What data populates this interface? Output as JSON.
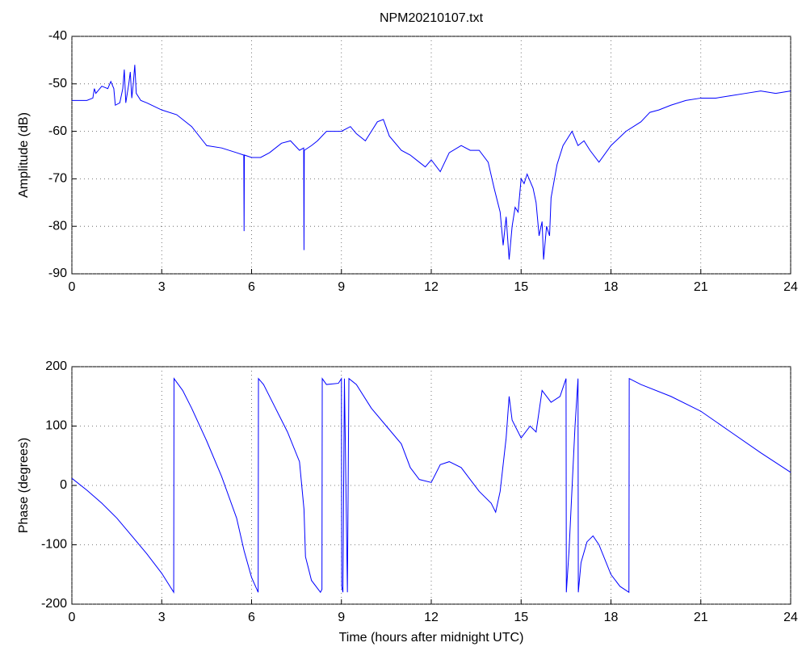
{
  "chart_data": [
    {
      "type": "line",
      "title": "NPM20210107.txt",
      "y_label": "Amplitude (dB)",
      "color": "#0000ff",
      "grid": true,
      "xlim": [
        0,
        24
      ],
      "xticks": [
        0,
        3,
        6,
        9,
        12,
        15,
        18,
        21,
        24
      ],
      "ylim": [
        -90,
        -40
      ],
      "yticks": [
        -90,
        -80,
        -70,
        -60,
        -50,
        -40
      ],
      "x": [
        0,
        0.5,
        0.7,
        0.75,
        0.8,
        1.0,
        1.2,
        1.3,
        1.4,
        1.45,
        1.6,
        1.7,
        1.75,
        1.8,
        1.9,
        1.95,
        2.0,
        2.05,
        2.1,
        2.15,
        2.3,
        2.5,
        3,
        3.5,
        4,
        4.5,
        5,
        5.5,
        5.74,
        5.75,
        5.76,
        6,
        6.3,
        6.6,
        7,
        7.3,
        7.6,
        7.74,
        7.75,
        7.76,
        8,
        8.2,
        8.5,
        9,
        9.3,
        9.5,
        9.8,
        10,
        10.2,
        10.4,
        10.6,
        11,
        11.3,
        11.6,
        11.8,
        12,
        12.3,
        12.6,
        13,
        13.3,
        13.6,
        13.9,
        14.1,
        14.3,
        14.4,
        14.5,
        14.6,
        14.7,
        14.8,
        14.9,
        15.0,
        15.1,
        15.2,
        15.4,
        15.5,
        15.6,
        15.7,
        15.75,
        15.85,
        15.95,
        16.0,
        16.2,
        16.4,
        16.5,
        16.7,
        16.9,
        17.1,
        17.3,
        17.6,
        18,
        18.5,
        19,
        19.3,
        19.6,
        20,
        20.5,
        21,
        21.5,
        22,
        22.5,
        23,
        23.5,
        24
      ],
      "values": [
        -53.5,
        -53.5,
        -53,
        -51,
        -52,
        -50.5,
        -51,
        -49.5,
        -51,
        -54.5,
        -54,
        -51,
        -47,
        -54,
        -50,
        -47.5,
        -53,
        -50,
        -46,
        -52,
        -53.5,
        -54,
        -55.5,
        -56.5,
        -59,
        -63,
        -63.5,
        -64.5,
        -65,
        -81,
        -65,
        -65.5,
        -65.5,
        -64.5,
        -62.5,
        -62,
        -64,
        -63.5,
        -85,
        -64,
        -63,
        -62,
        -60,
        -60,
        -59,
        -60.5,
        -62,
        -60,
        -58,
        -57.5,
        -61,
        -64,
        -65,
        -66.5,
        -67.5,
        -66,
        -68.5,
        -64.5,
        -63,
        -64,
        -64,
        -66.5,
        -72,
        -77,
        -84,
        -78,
        -87,
        -80,
        -76,
        -77,
        -70,
        -71,
        -69,
        -72,
        -75,
        -82,
        -79,
        -87,
        -80,
        -82,
        -74,
        -67,
        -63,
        -62,
        -60,
        -63,
        -62,
        -64,
        -66.5,
        -63,
        -60,
        -58,
        -56,
        -55.5,
        -54.5,
        -53.5,
        -53,
        -53,
        -52.5,
        -52,
        -51.5,
        -52,
        -51.5
      ]
    },
    {
      "type": "line",
      "x_label": "Time (hours after midnight UTC)",
      "y_label": "Phase (degrees)",
      "color": "#0000ff",
      "grid": true,
      "xlim": [
        0,
        24
      ],
      "xticks": [
        0,
        3,
        6,
        9,
        12,
        15,
        18,
        21,
        24
      ],
      "ylim": [
        -200,
        200
      ],
      "yticks": [
        -200,
        -100,
        0,
        100,
        200
      ],
      "x": [
        0,
        0.5,
        1,
        1.5,
        2,
        2.5,
        3,
        3.4,
        3.41,
        3.7,
        4,
        4.5,
        5,
        5.5,
        5.75,
        6.0,
        6.22,
        6.23,
        6.4,
        6.8,
        7.2,
        7.6,
        7.75,
        7.8,
        8,
        8.3,
        8.35,
        8.36,
        8.5,
        8.9,
        9.0,
        9.01,
        9.05,
        9.1,
        9.2,
        9.25,
        9.5,
        10,
        10.5,
        11,
        11.3,
        11.6,
        12,
        12.3,
        12.6,
        13,
        13.3,
        13.6,
        14.0,
        14.15,
        14.3,
        14.5,
        14.6,
        14.7,
        15,
        15.3,
        15.5,
        15.7,
        16,
        16.3,
        16.5,
        16.51,
        16.6,
        16.8,
        16.9,
        16.91,
        17.0,
        17.2,
        17.4,
        17.6,
        18,
        18.3,
        18.6,
        18.61,
        19,
        20,
        21,
        22,
        23,
        24
      ],
      "values": [
        12,
        -8,
        -30,
        -55,
        -85,
        -115,
        -148,
        -180,
        180,
        160,
        130,
        75,
        15,
        -55,
        -110,
        -155,
        -180,
        180,
        170,
        130,
        90,
        40,
        -40,
        -120,
        -160,
        -180,
        -175,
        180,
        170,
        172,
        180,
        -170,
        -180,
        180,
        -180,
        180,
        170,
        130,
        100,
        70,
        30,
        10,
        5,
        35,
        40,
        30,
        10,
        -10,
        -30,
        -45,
        -10,
        80,
        150,
        110,
        80,
        100,
        90,
        160,
        140,
        150,
        180,
        -180,
        -110,
        100,
        180,
        -180,
        -130,
        -95,
        -85,
        -100,
        -150,
        -170,
        -180,
        180,
        170,
        150,
        125,
        90,
        55,
        22
      ]
    }
  ]
}
